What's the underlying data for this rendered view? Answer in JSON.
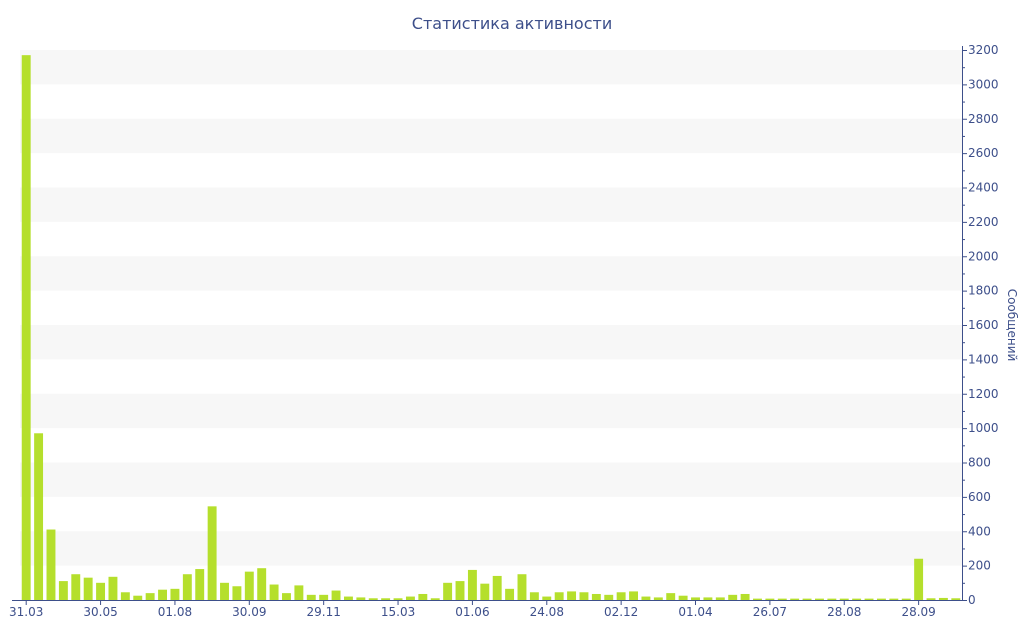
{
  "chart_data": {
    "type": "bar",
    "title": "Статистика активности",
    "ylabel": "Сообщений",
    "y_axis_position": "right",
    "ylim": [
      0,
      3200
    ],
    "y_ticks": [
      0,
      200,
      400,
      600,
      800,
      1000,
      1200,
      1400,
      1600,
      1800,
      2000,
      2200,
      2400,
      2600,
      2800,
      3000,
      3200
    ],
    "grid": "alternating horizontal bands",
    "x_tick_labels": [
      "31.03",
      "30.05",
      "01.08",
      "30.09",
      "29.11",
      "15.03",
      "01.06",
      "24.08",
      "02.12",
      "01.04",
      "26.07",
      "28.08",
      "28.09"
    ],
    "x_tick_bar_index": [
      0,
      6,
      12,
      18,
      24,
      30,
      36,
      42,
      48,
      54,
      60,
      66,
      72
    ],
    "values": [
      3170,
      970,
      410,
      110,
      150,
      130,
      100,
      135,
      45,
      25,
      40,
      60,
      65,
      150,
      180,
      545,
      100,
      80,
      165,
      185,
      90,
      40,
      85,
      30,
      30,
      55,
      20,
      15,
      10,
      10,
      10,
      20,
      35,
      10,
      100,
      110,
      175,
      95,
      140,
      65,
      150,
      45,
      20,
      45,
      50,
      45,
      35,
      30,
      45,
      50,
      20,
      15,
      40,
      25,
      15,
      15,
      15,
      30,
      35,
      8,
      8,
      8,
      8,
      8,
      8,
      8,
      8,
      8,
      8,
      8,
      8,
      8,
      240,
      10,
      12,
      10
    ],
    "colors": {
      "bar": "#b5df2c",
      "band": "#f7f7f7",
      "axis": "#3d4f8a",
      "text": "#3d4f8a"
    }
  }
}
